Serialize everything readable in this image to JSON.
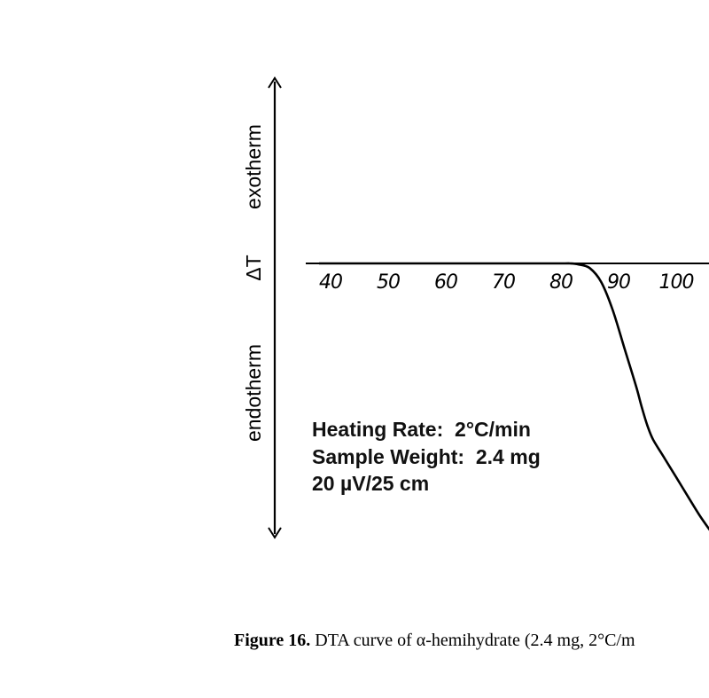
{
  "chart_data": {
    "type": "line",
    "x_ticks": [
      40,
      50,
      60,
      70,
      80,
      90,
      100
    ],
    "y_labels": {
      "top": "exotherm",
      "middle": "ΔT",
      "bottom": "endotherm"
    },
    "annotations": [
      "Heating Rate:  2°C/min",
      "Sample Weight:  2.4 mg",
      "20 µV/25 cm"
    ],
    "series": [
      {
        "x": [
          38,
          40,
          50,
          60,
          70,
          80,
          81.5,
          83,
          85,
          87,
          89,
          91,
          93,
          94,
          95,
          96,
          98,
          100,
          102,
          104,
          106
        ],
        "y": [
          0,
          0,
          0,
          0,
          0,
          0,
          0,
          -0.02,
          -0.1,
          -0.4,
          -1.0,
          -1.8,
          -2.6,
          -3.05,
          -3.45,
          -3.75,
          -4.15,
          -4.55,
          -4.95,
          -5.35,
          -5.7
        ]
      }
    ]
  },
  "caption": {
    "label": "Figure 16.",
    "text": " DTA curve of α-hemihydrate (2.4 mg, 2°C/m"
  }
}
